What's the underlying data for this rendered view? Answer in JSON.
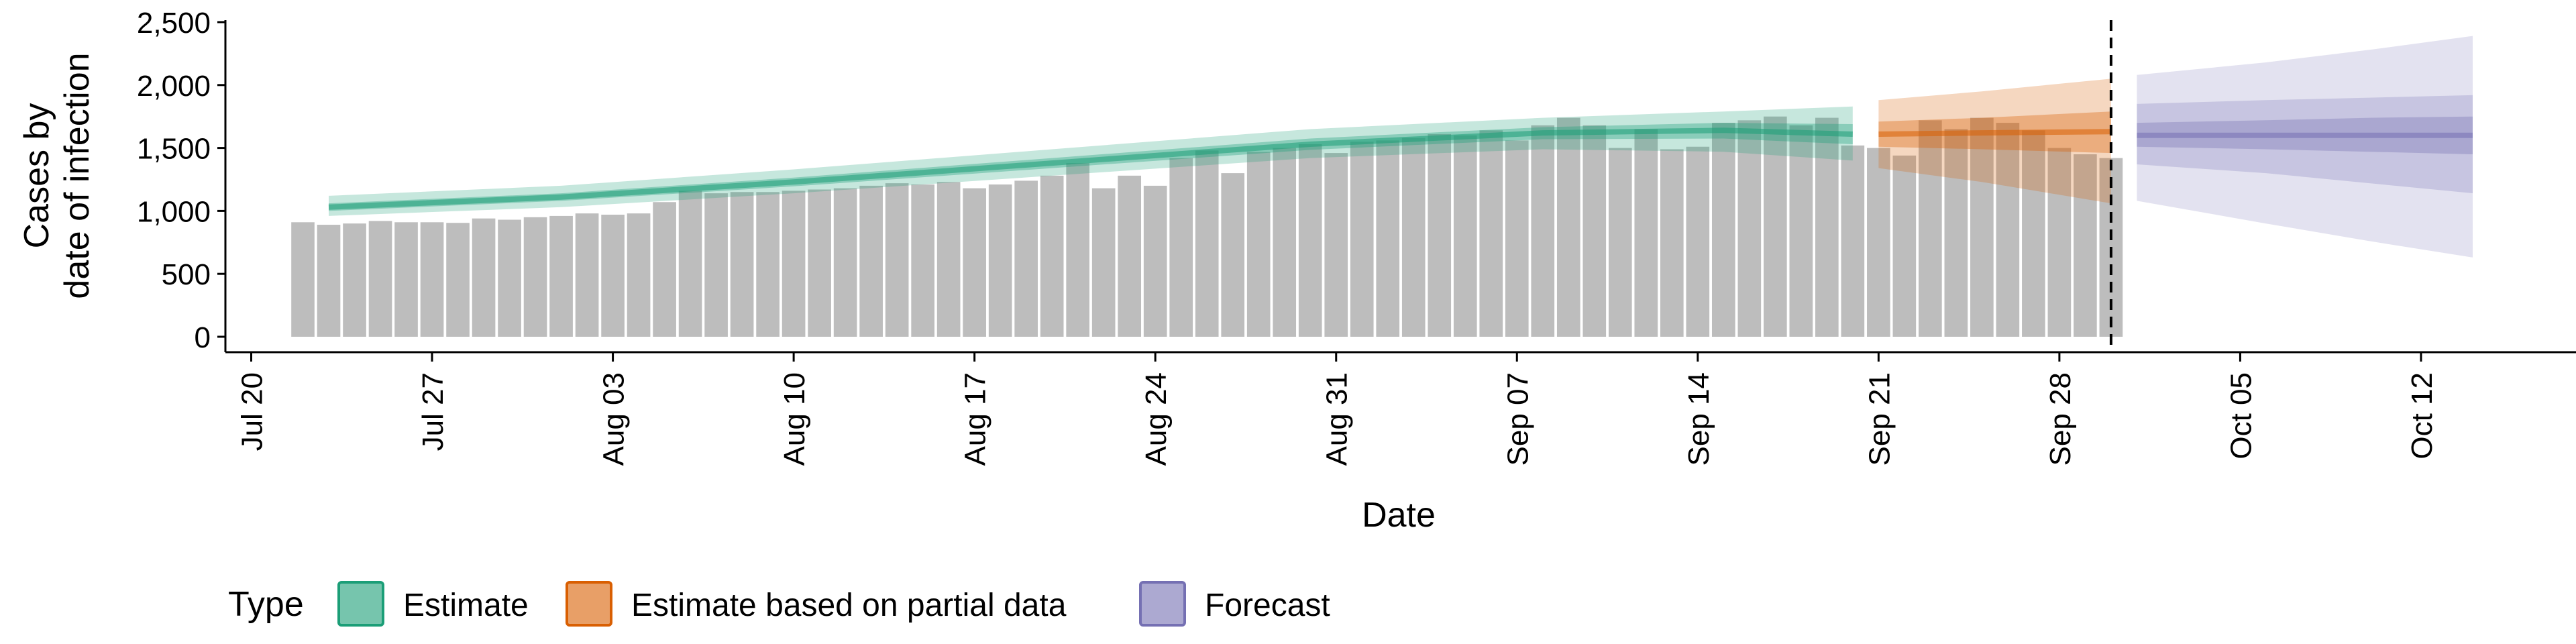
{
  "chart_data": {
    "type": "bar",
    "ylabel_lines": [
      "Cases by",
      "date of infection"
    ],
    "xlabel": "Date",
    "ylim": [
      0,
      2500
    ],
    "y_ticks": [
      0,
      500,
      1000,
      1500,
      2000,
      2500
    ],
    "y_tick_labels": [
      "0",
      "500",
      "1,000",
      "1,500",
      "2,000",
      "2,500"
    ],
    "x_domain": [
      "2020-07-19",
      "2020-10-18"
    ],
    "x_ticks": [
      "2020-07-20",
      "2020-07-27",
      "2020-08-03",
      "2020-08-10",
      "2020-08-17",
      "2020-08-24",
      "2020-08-31",
      "2020-09-07",
      "2020-09-14",
      "2020-09-21",
      "2020-09-28",
      "2020-10-05",
      "2020-10-12"
    ],
    "x_tick_labels": [
      "Jul 20",
      "Jul 27",
      "Aug 03",
      "Aug 10",
      "Aug 17",
      "Aug 24",
      "Aug 31",
      "Sep 07",
      "Sep 14",
      "Sep 21",
      "Sep 28",
      "Oct 05",
      "Oct 12"
    ],
    "bars": {
      "start_date": "2020-07-22",
      "values": [
        910,
        890,
        900,
        920,
        910,
        910,
        905,
        940,
        930,
        950,
        960,
        980,
        970,
        980,
        1070,
        1160,
        1140,
        1150,
        1150,
        1160,
        1170,
        1180,
        1200,
        1220,
        1210,
        1230,
        1180,
        1210,
        1240,
        1280,
        1380,
        1180,
        1280,
        1200,
        1420,
        1480,
        1300,
        1470,
        1500,
        1530,
        1460,
        1550,
        1560,
        1580,
        1610,
        1600,
        1640,
        1560,
        1680,
        1740,
        1680,
        1500,
        1650,
        1490,
        1510,
        1700,
        1720,
        1750,
        1680,
        1740,
        1520,
        1500,
        1440,
        1720,
        1650,
        1740,
        1700,
        1640,
        1500,
        1450,
        1420
      ],
      "color": "#bdbdbd"
    },
    "series": [
      {
        "name": "Estimate",
        "color": "#1b9e77",
        "dates": [
          "2020-07-23",
          "2020-08-01",
          "2020-08-10",
          "2020-08-20",
          "2020-08-30",
          "2020-09-08",
          "2020-09-15",
          "2020-09-20"
        ],
        "median": [
          1030,
          1110,
          1230,
          1380,
          1530,
          1620,
          1640,
          1610
        ],
        "inner_lo": [
          1000,
          1080,
          1195,
          1340,
          1485,
          1570,
          1575,
          1530
        ],
        "inner_hi": [
          1060,
          1140,
          1265,
          1420,
          1575,
          1665,
          1700,
          1690
        ],
        "outer_lo": [
          960,
          1030,
          1140,
          1280,
          1420,
          1490,
          1470,
          1400
        ],
        "outer_hi": [
          1120,
          1200,
          1330,
          1490,
          1650,
          1740,
          1790,
          1830
        ]
      },
      {
        "name": "Estimate based on partial data",
        "color": "#d95f02",
        "dates": [
          "2020-09-21",
          "2020-09-25",
          "2020-09-30"
        ],
        "median": [
          1610,
          1620,
          1630
        ],
        "inner_lo": [
          1510,
          1490,
          1460
        ],
        "inner_hi": [
          1710,
          1740,
          1790
        ],
        "outer_lo": [
          1340,
          1230,
          1060
        ],
        "outer_hi": [
          1880,
          1950,
          2050
        ]
      },
      {
        "name": "Forecast",
        "color": "#7570b3",
        "dates": [
          "2020-10-01",
          "2020-10-06",
          "2020-10-10",
          "2020-10-14"
        ],
        "median": [
          1600,
          1600,
          1600,
          1600
        ],
        "inner_lo": [
          1510,
          1490,
          1470,
          1450
        ],
        "inner_hi": [
          1700,
          1720,
          1740,
          1750
        ],
        "outer_lo": [
          1370,
          1300,
          1220,
          1140
        ],
        "outer_hi": [
          1850,
          1880,
          1900,
          1920
        ],
        "extra_lo": [
          1080,
          900,
          760,
          630
        ],
        "extra_hi": [
          2080,
          2180,
          2280,
          2390
        ]
      }
    ],
    "vline_date": "2020-09-30",
    "legend": {
      "title": "Type",
      "placement": "bottom",
      "items": [
        "Estimate",
        "Estimate based on partial data",
        "Forecast"
      ]
    }
  }
}
